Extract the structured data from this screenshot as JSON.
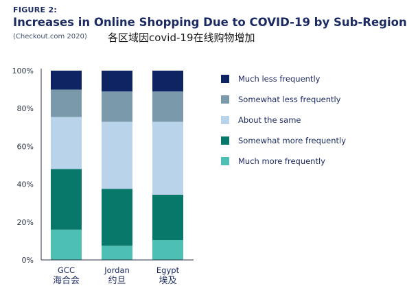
{
  "figure_label": "FIGURE 2:",
  "title": "Increases in Online Shopping Due to COVID-19 by Sub-Region",
  "source": "(Checkout.com 2020)",
  "title_cn": "各区域因covid-19在线购物增加",
  "chart_data": {
    "type": "bar",
    "stacked": true,
    "categories": [
      "GCC",
      "Jordan",
      "Egypt"
    ],
    "categories_cn": [
      "海合会",
      "约旦",
      "埃及"
    ],
    "ylim": [
      0,
      100
    ],
    "yticks": [
      "0%",
      "20%",
      "40%",
      "60%",
      "80%",
      "100%"
    ],
    "grid": false,
    "legend_position": "right",
    "series": [
      {
        "name": "Much more frequently",
        "color": "#4dbfb3",
        "values": [
          16,
          7.5,
          10.5
        ]
      },
      {
        "name": "Somewhat more frequently",
        "color": "#08786b",
        "values": [
          32,
          30,
          24
        ]
      },
      {
        "name": "About the same",
        "color": "#b9d3ea",
        "values": [
          27.5,
          35.5,
          38.5
        ]
      },
      {
        "name": "Somewhat less frequently",
        "color": "#7a9aab",
        "values": [
          14.5,
          16,
          16
        ]
      },
      {
        "name": "Much less frequently",
        "color": "#0e2463",
        "values": [
          10,
          11,
          11
        ]
      }
    ]
  }
}
